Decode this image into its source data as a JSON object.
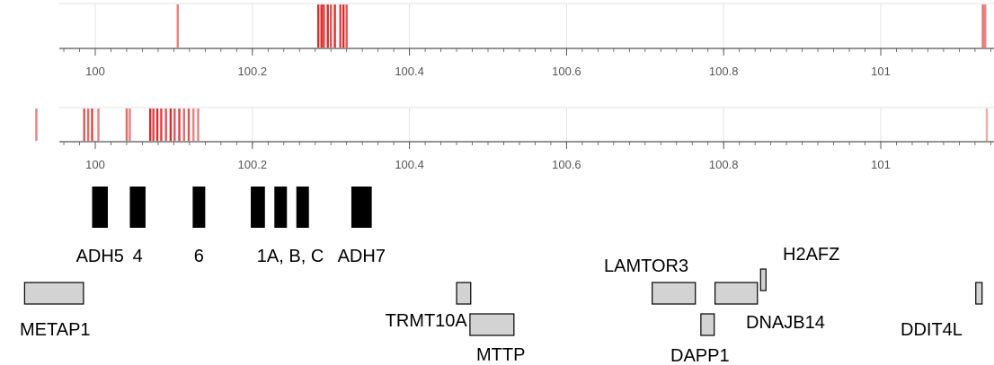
{
  "chart_data": [
    {
      "type": "strip",
      "track": "top",
      "xlim": [
        99.9,
        101.14
      ],
      "tick_labels": [
        "100",
        "100.2",
        "100.4",
        "100.6",
        "100.8",
        "101"
      ],
      "ticks": [
        100,
        100.2,
        100.4,
        100.6,
        100.8,
        101
      ],
      "marks": [
        {
          "x": 100.105,
          "intensity": 0.6
        },
        {
          "x": 100.284,
          "intensity": 1.0
        },
        {
          "x": 100.288,
          "intensity": 1.0
        },
        {
          "x": 100.291,
          "intensity": 0.9
        },
        {
          "x": 100.296,
          "intensity": 1.0
        },
        {
          "x": 100.3,
          "intensity": 0.8
        },
        {
          "x": 100.305,
          "intensity": 1.0
        },
        {
          "x": 100.312,
          "intensity": 0.9
        },
        {
          "x": 100.316,
          "intensity": 1.0
        },
        {
          "x": 100.32,
          "intensity": 0.8
        },
        {
          "x": 101.13,
          "intensity": 0.7
        },
        {
          "x": 101.133,
          "intensity": 0.6
        }
      ]
    },
    {
      "type": "strip",
      "track": "bottom",
      "xlim": [
        99.9,
        101.14
      ],
      "tick_labels": [
        "100",
        "100.2",
        "100.4",
        "100.6",
        "100.8",
        "101"
      ],
      "ticks": [
        100,
        100.2,
        100.4,
        100.6,
        100.8,
        101
      ],
      "marks": [
        {
          "x": 99.925,
          "intensity": 0.6
        },
        {
          "x": 99.986,
          "intensity": 0.8
        },
        {
          "x": 99.991,
          "intensity": 0.7
        },
        {
          "x": 99.996,
          "intensity": 0.9
        },
        {
          "x": 100.004,
          "intensity": 0.6
        },
        {
          "x": 100.04,
          "intensity": 0.7
        },
        {
          "x": 100.044,
          "intensity": 0.6
        },
        {
          "x": 100.07,
          "intensity": 1.0
        },
        {
          "x": 100.074,
          "intensity": 0.9
        },
        {
          "x": 100.079,
          "intensity": 1.0
        },
        {
          "x": 100.084,
          "intensity": 0.9
        },
        {
          "x": 100.09,
          "intensity": 0.8
        },
        {
          "x": 100.096,
          "intensity": 1.0
        },
        {
          "x": 100.101,
          "intensity": 0.8
        },
        {
          "x": 100.107,
          "intensity": 0.9
        },
        {
          "x": 100.113,
          "intensity": 0.7
        },
        {
          "x": 100.119,
          "intensity": 0.8
        },
        {
          "x": 100.125,
          "intensity": 0.6
        },
        {
          "x": 100.131,
          "intensity": 0.6
        },
        {
          "x": 101.135,
          "intensity": 0.4
        }
      ]
    }
  ],
  "adh_cluster": [
    {
      "label": "ADH5",
      "start": 99.996,
      "end": 100.016
    },
    {
      "label": "4",
      "start": 100.044,
      "end": 100.064
    },
    {
      "label": "6",
      "start": 100.124,
      "end": 100.14
    },
    {
      "label": "1A, B, C",
      "start": 100.198,
      "end": 100.216
    },
    {
      "label": "",
      "start": 100.228,
      "end": 100.244
    },
    {
      "label": "",
      "start": 100.256,
      "end": 100.272
    },
    {
      "label": "ADH7",
      "start": 100.326,
      "end": 100.352
    }
  ],
  "genes": [
    {
      "label": "METAP1",
      "start": 99.91,
      "end": 99.985,
      "row": "upper",
      "label_pos": "below-left"
    },
    {
      "label": "TRMT10A",
      "start": 100.46,
      "end": 100.478,
      "row": "upper",
      "label_pos": "below-left"
    },
    {
      "label": "MTTP",
      "start": 100.477,
      "end": 100.533,
      "row": "lower",
      "label_pos": "below"
    },
    {
      "label": "LAMTOR3",
      "start": 100.709,
      "end": 100.764,
      "row": "upper",
      "label_pos": "above-left"
    },
    {
      "label": "DAPP1",
      "start": 100.771,
      "end": 100.788,
      "row": "lower",
      "label_pos": "below"
    },
    {
      "label": "DNAJB14",
      "start": 100.789,
      "end": 100.843,
      "row": "upper",
      "label_pos": "below-right"
    },
    {
      "label": "H2AFZ",
      "start": 100.847,
      "end": 100.853,
      "row": "tall",
      "label_pos": "above"
    },
    {
      "label": "DDIT4L",
      "start": 101.121,
      "end": 101.129,
      "row": "upper",
      "label_pos": "below"
    }
  ],
  "colors": {
    "mark": "#d92b2b",
    "axis": "#555555",
    "grid": "#e3e3e3",
    "adh_box": "#000000",
    "gene_fill": "#d3d3d3",
    "gene_stroke": "#000000"
  }
}
